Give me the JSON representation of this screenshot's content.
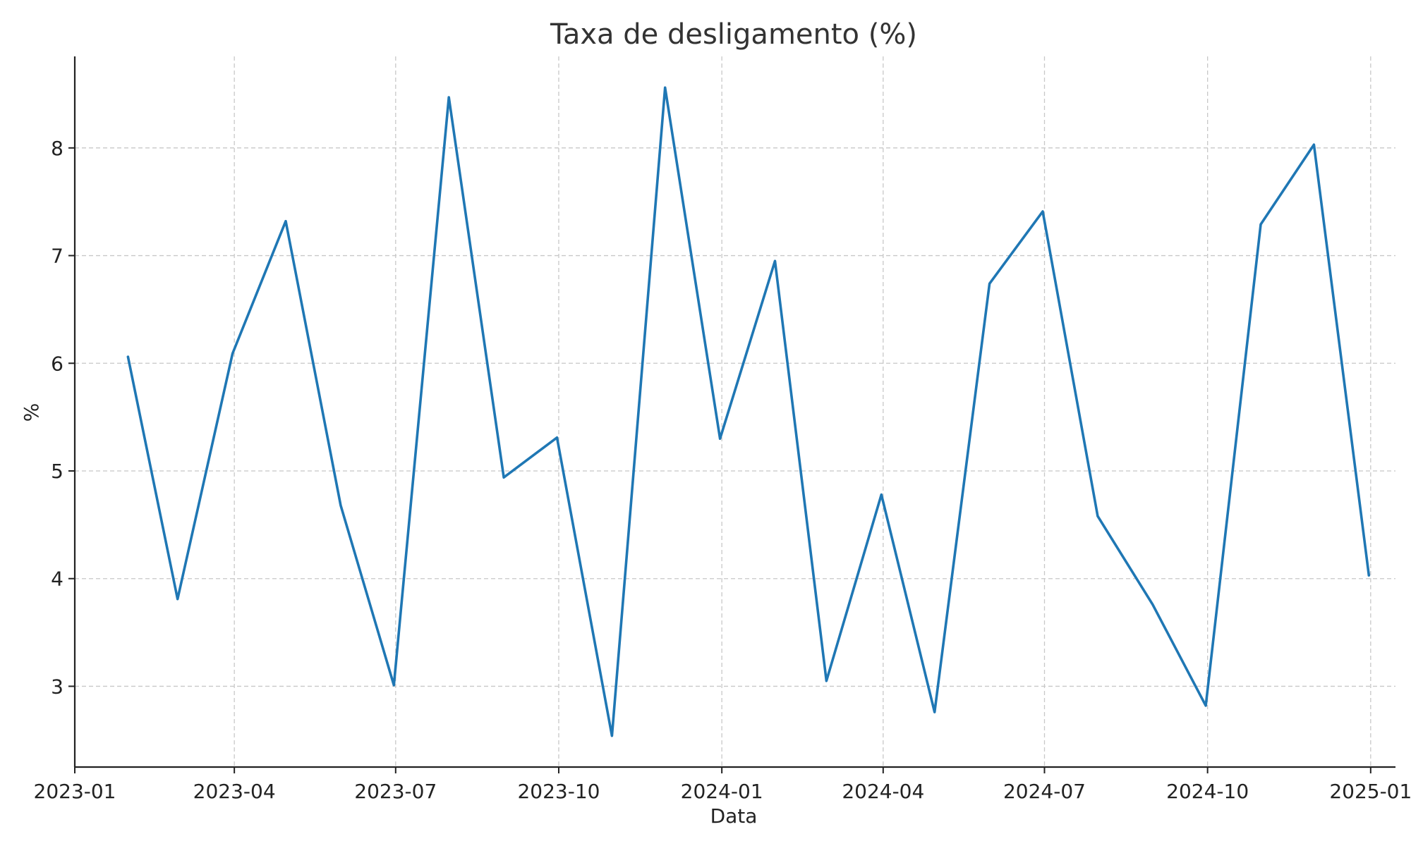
{
  "chart_data": {
    "type": "line",
    "title": "Taxa de desligamento (%)",
    "xlabel": "Data",
    "ylabel": "%",
    "x_axis_type": "date",
    "xlim": [
      "2023-01-01",
      "2025-01-15"
    ],
    "ylim": [
      2.25,
      8.85
    ],
    "x_ticks": [
      {
        "date": "2023-01-01",
        "label": "2023-01"
      },
      {
        "date": "2023-04-01",
        "label": "2023-04"
      },
      {
        "date": "2023-07-01",
        "label": "2023-07"
      },
      {
        "date": "2023-10-01",
        "label": "2023-10"
      },
      {
        "date": "2024-01-01",
        "label": "2024-01"
      },
      {
        "date": "2024-04-01",
        "label": "2024-04"
      },
      {
        "date": "2024-07-01",
        "label": "2024-07"
      },
      {
        "date": "2024-10-01",
        "label": "2024-10"
      },
      {
        "date": "2025-01-01",
        "label": "2025-01"
      }
    ],
    "y_ticks": [
      3,
      4,
      5,
      6,
      7,
      8
    ],
    "grid": true,
    "series": [
      {
        "color": "#1f77b4",
        "x": [
          "2023-01-31",
          "2023-02-28",
          "2023-03-31",
          "2023-04-30",
          "2023-05-31",
          "2023-06-30",
          "2023-07-31",
          "2023-08-31",
          "2023-09-30",
          "2023-10-31",
          "2023-11-30",
          "2023-12-31",
          "2024-01-31",
          "2024-02-29",
          "2024-03-31",
          "2024-04-30",
          "2024-05-31",
          "2024-06-30",
          "2024-07-31",
          "2024-08-31",
          "2024-09-30",
          "2024-10-31",
          "2024-11-30",
          "2024-12-31"
        ],
        "values": [
          6.06,
          3.81,
          6.09,
          7.32,
          4.68,
          3.01,
          8.47,
          4.94,
          5.31,
          2.54,
          8.56,
          5.3,
          6.95,
          3.05,
          4.78,
          2.76,
          6.74,
          7.41,
          4.58,
          3.76,
          2.82,
          7.29,
          8.03,
          4.03
        ]
      }
    ]
  }
}
